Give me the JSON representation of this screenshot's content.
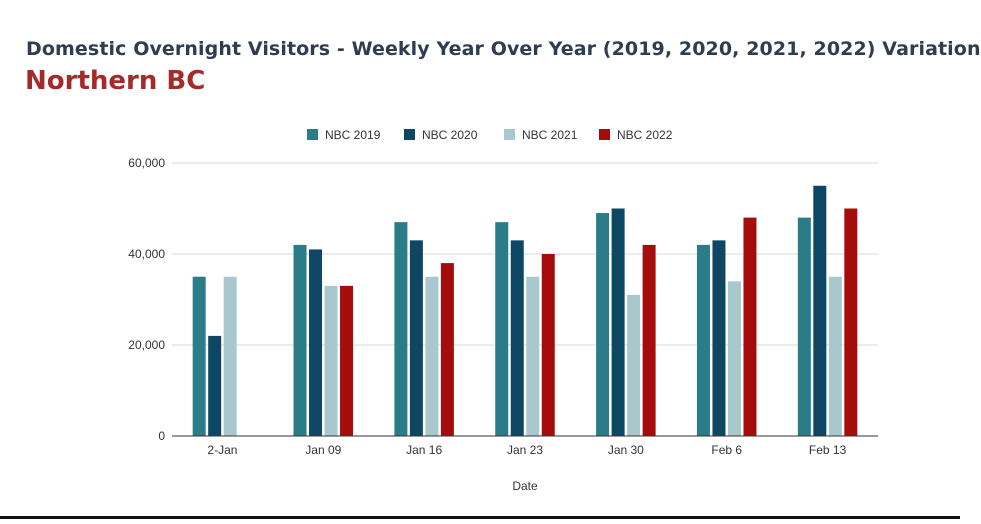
{
  "title": "Domestic Overnight Visitors - Weekly Year Over Year (2019, 2020, 2021, 2022) Variation",
  "subtitle": "Northern BC",
  "chart_data": {
    "type": "bar",
    "categories": [
      "2-Jan",
      "Jan 09",
      "Jan 16",
      "Jan 23",
      "Jan 30",
      "Feb 6",
      "Feb 13"
    ],
    "series": [
      {
        "name": "NBC 2019",
        "color": "#2a7c89",
        "values": [
          35000,
          42000,
          47000,
          47000,
          49000,
          42000,
          48000
        ]
      },
      {
        "name": "NBC 2020",
        "color": "#0e4763",
        "values": [
          22000,
          41000,
          43000,
          43000,
          50000,
          43000,
          55000
        ]
      },
      {
        "name": "NBC 2021",
        "color": "#a9c8cd",
        "values": [
          35000,
          33000,
          35000,
          35000,
          31000,
          34000,
          35000
        ]
      },
      {
        "name": "NBC 2022",
        "color": "#a50d0d",
        "values": [
          null,
          33000,
          38000,
          40000,
          42000,
          48000,
          50000
        ]
      }
    ],
    "xlabel": "Date",
    "ylabel": "",
    "ylim": [
      0,
      60000
    ],
    "yticks": [
      "0",
      "20,000",
      "40,000",
      "60,000"
    ],
    "grid": true,
    "legend_position": "top-center"
  }
}
